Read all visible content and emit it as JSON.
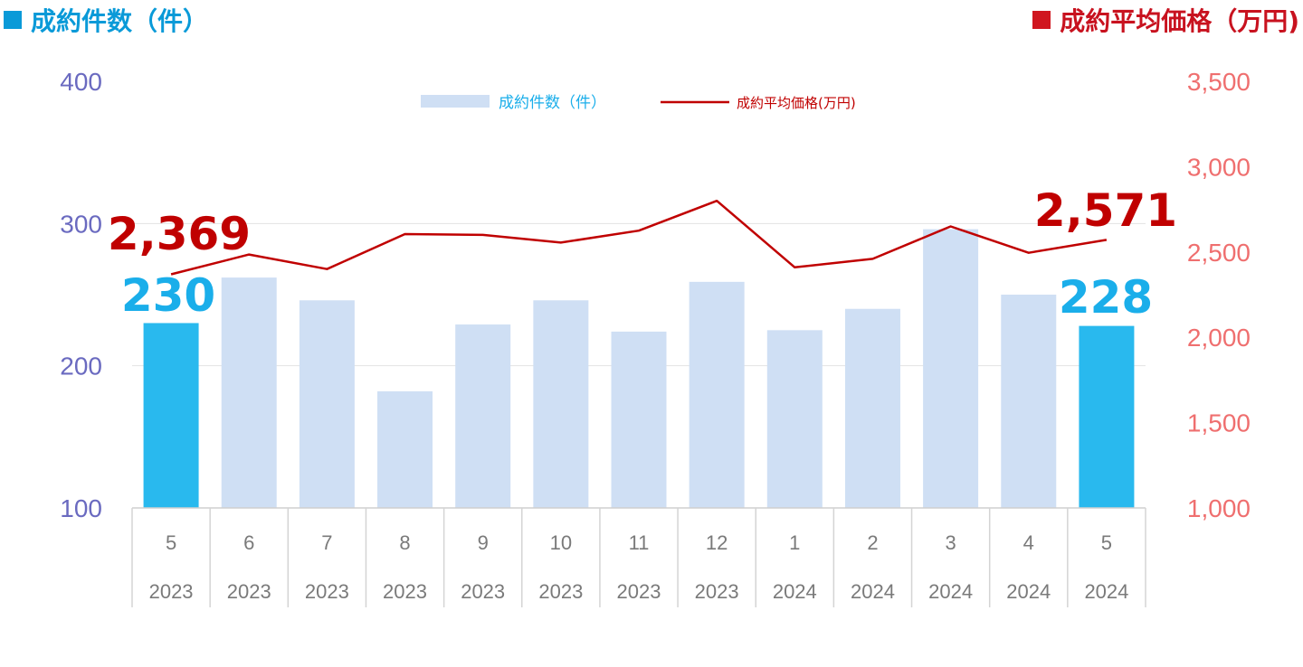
{
  "headers": {
    "left": "成約件数（件）",
    "right": "成約平均価格（万円)"
  },
  "legend": {
    "bars_label": "成約件数（件）",
    "line_label": "成約平均価格(万円)"
  },
  "colors": {
    "bar": "#cfdff4",
    "bar_highlight": "#29b9ee",
    "line": "#c00000",
    "left_axis": "#6a6ac0",
    "right_axis": "#ef6f6f",
    "bar_label": "#1aaeea",
    "line_label": "#c00000"
  },
  "chart_data": {
    "type": "bar",
    "categories": [
      {
        "month": "5",
        "year": "2023"
      },
      {
        "month": "6",
        "year": "2023"
      },
      {
        "month": "7",
        "year": "2023"
      },
      {
        "month": "8",
        "year": "2023"
      },
      {
        "month": "9",
        "year": "2023"
      },
      {
        "month": "10",
        "year": "2023"
      },
      {
        "month": "11",
        "year": "2023"
      },
      {
        "month": "12",
        "year": "2023"
      },
      {
        "month": "1",
        "year": "2024"
      },
      {
        "month": "2",
        "year": "2024"
      },
      {
        "month": "3",
        "year": "2024"
      },
      {
        "month": "4",
        "year": "2024"
      },
      {
        "month": "5",
        "year": "2024"
      }
    ],
    "series": [
      {
        "name": "成約件数（件）",
        "type": "bar",
        "axis": "left",
        "values": [
          230,
          262,
          246,
          182,
          229,
          246,
          224,
          259,
          225,
          240,
          296,
          250,
          228
        ],
        "highlight_indices": [
          0,
          12
        ]
      },
      {
        "name": "成約平均価格(万円)",
        "type": "line",
        "axis": "right",
        "values": [
          2369,
          2485,
          2400,
          2605,
          2600,
          2555,
          2625,
          2800,
          2410,
          2460,
          2650,
          2495,
          2571
        ]
      }
    ],
    "left_axis": {
      "min": 100,
      "max": 400,
      "ticks": [
        "100",
        "200",
        "300",
        "400"
      ]
    },
    "right_axis": {
      "min": 1000,
      "max": 3500,
      "ticks": [
        "1,000",
        "1,500",
        "2,000",
        "2,500",
        "3,000",
        "3,500"
      ]
    },
    "grid": true,
    "legend_position": "top-center",
    "annotations": {
      "bar_first": "230",
      "bar_last": "228",
      "line_first": "2,369",
      "line_last": "2,571"
    }
  }
}
